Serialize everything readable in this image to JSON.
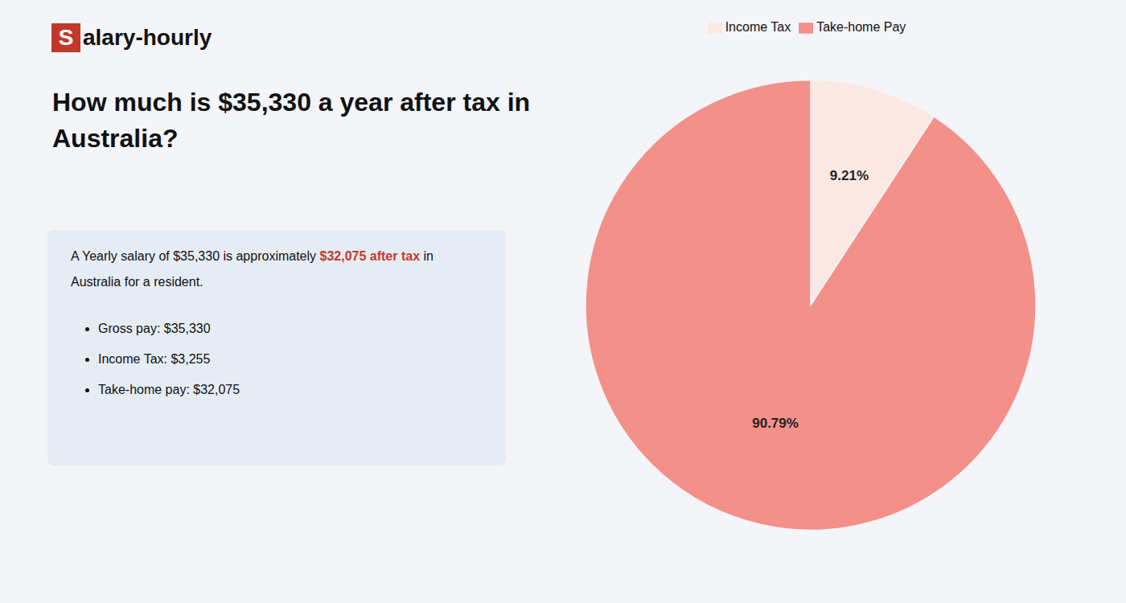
{
  "chart_data": {
    "type": "pie",
    "title": "How much is $35,330 a year after tax in\nAustralia?",
    "annotations": [
      {
        "text": "S",
        "color": "#c0392b"
      },
      {
        "text": "alary-hourly"
      },
      {
        "text": "A Yearly salary of $35,330 is approximately "
      },
      {
        "text": "$32,075 after tax",
        "color": "#c0392b"
      },
      {
        "text": " in"
      },
      {
        "text": "Australia for a resident."
      },
      {
        "text": "Gross pay: $35,330"
      },
      {
        "text": "Income Tax: $3,255"
      },
      {
        "text": "Take-home pay: $32,075"
      }
    ],
    "categories": [
      "Income Tax",
      "Take-home Pay"
    ],
    "values": [
      9.21,
      90.79
    ],
    "value_labels": [
      "9.21%",
      "90.79%"
    ],
    "colors": [
      "#fce8e2",
      "#f4908a"
    ],
    "data_labels": true,
    "legend": "top"
  }
}
